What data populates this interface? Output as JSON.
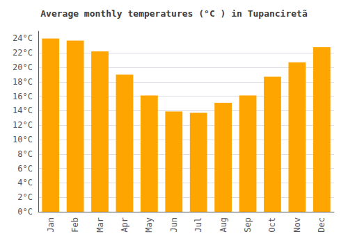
{
  "chart_data": {
    "type": "bar",
    "title": "Average monthly temperatures (°C ) in Tupanciretã",
    "categories": [
      "Jan",
      "Feb",
      "Mar",
      "Apr",
      "May",
      "Jun",
      "Jul",
      "Aug",
      "Sep",
      "Oct",
      "Nov",
      "Dec"
    ],
    "values": [
      24.0,
      23.7,
      22.2,
      19.0,
      16.1,
      13.9,
      13.7,
      15.1,
      16.1,
      18.7,
      20.7,
      22.8
    ],
    "color": "#FFA500",
    "ylim": [
      0,
      25
    ],
    "yticks": [
      {
        "value": 0,
        "label": "0°C"
      },
      {
        "value": 2,
        "label": "2°C"
      },
      {
        "value": 4,
        "label": "4°C"
      },
      {
        "value": 6,
        "label": "6°C"
      },
      {
        "value": 8,
        "label": "8°C"
      },
      {
        "value": 10,
        "label": "10°C"
      },
      {
        "value": 12,
        "label": "12°C"
      },
      {
        "value": 14,
        "label": "14°C"
      },
      {
        "value": 16,
        "label": "16°C"
      },
      {
        "value": 18,
        "label": "18°C"
      },
      {
        "value": 20,
        "label": "20°C"
      },
      {
        "value": 22,
        "label": "22°C"
      },
      {
        "value": 24,
        "label": "24°C"
      }
    ],
    "grid": true
  }
}
